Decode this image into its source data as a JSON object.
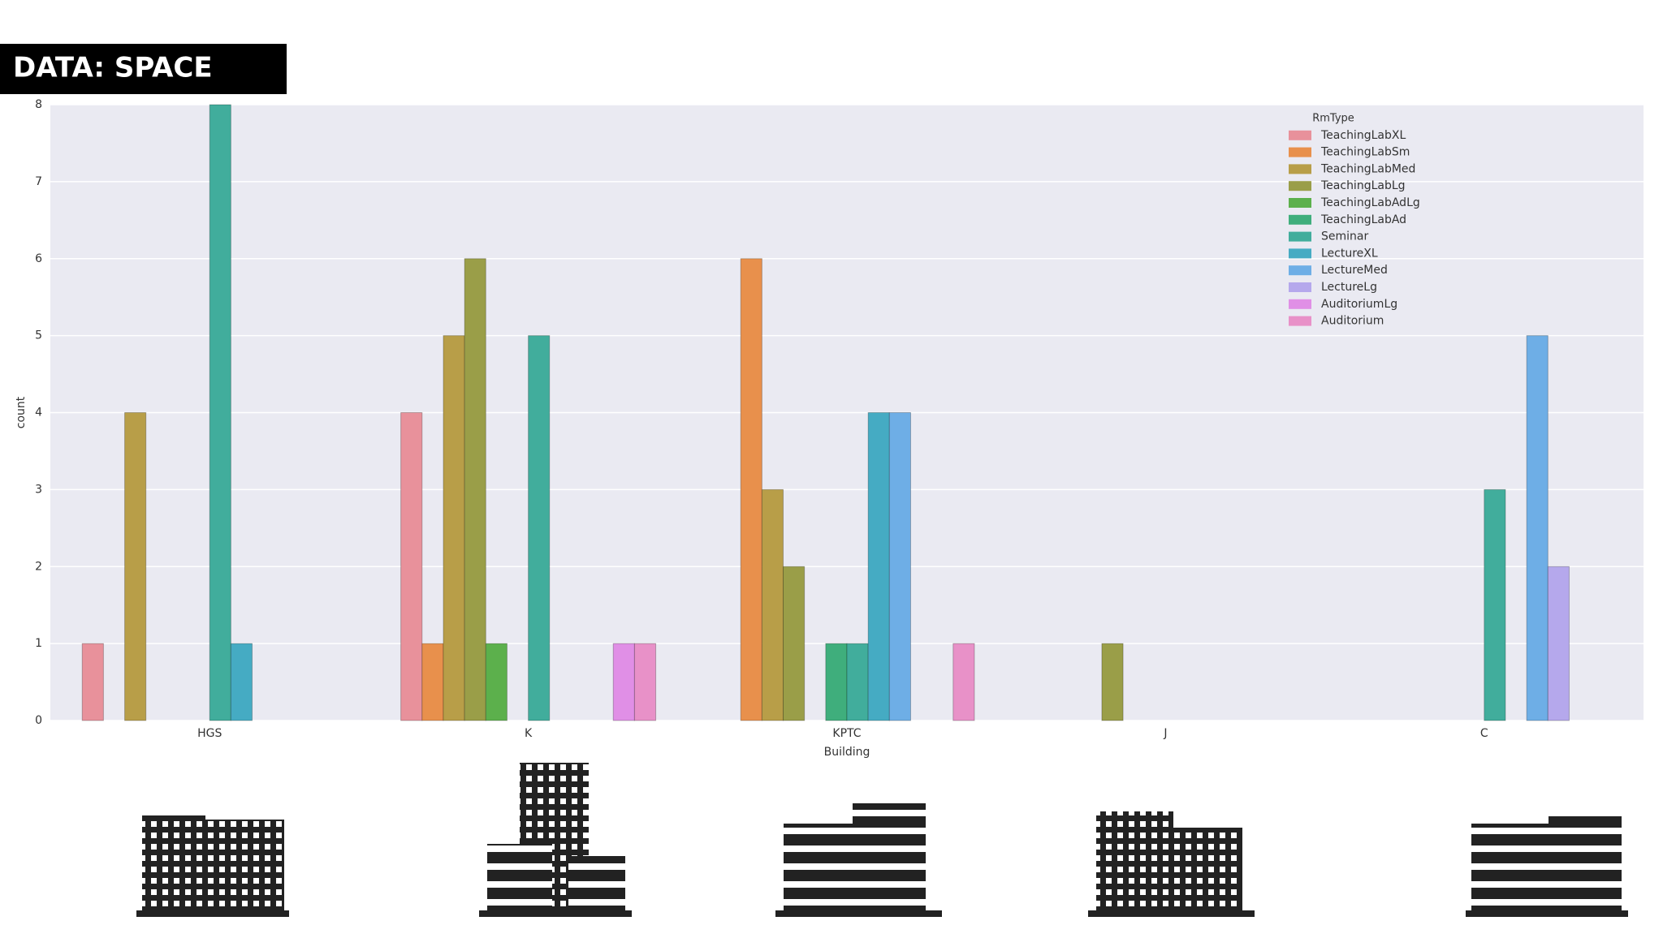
{
  "title": "DATA: SPACE",
  "chart_data": {
    "type": "bar",
    "xlabel": "Building",
    "ylabel": "count",
    "legend_title": "RmType",
    "legend": "upper right",
    "grid": true,
    "categories": [
      "HGS",
      "K",
      "KPTC",
      "J",
      "C"
    ],
    "ylim": [
      0,
      8
    ],
    "yticks": [
      0,
      1,
      2,
      3,
      4,
      5,
      6,
      7,
      8
    ],
    "series": [
      {
        "name": "TeachingLabXL",
        "color": "#e8919b",
        "values": [
          1,
          4,
          0,
          0,
          0
        ]
      },
      {
        "name": "TeachingLabSm",
        "color": "#e8904c",
        "values": [
          0,
          1,
          6,
          0,
          0
        ]
      },
      {
        "name": "TeachingLabMed",
        "color": "#b89e48",
        "values": [
          4,
          5,
          3,
          0,
          0
        ]
      },
      {
        "name": "TeachingLabLg",
        "color": "#9a9e48",
        "values": [
          0,
          6,
          2,
          1,
          0
        ]
      },
      {
        "name": "TeachingLabAdLg",
        "color": "#5cb04c",
        "values": [
          0,
          1,
          0,
          0,
          0
        ]
      },
      {
        "name": "TeachingLabAd",
        "color": "#3fae7c",
        "values": [
          0,
          0,
          1,
          0,
          0
        ]
      },
      {
        "name": "Seminar",
        "color": "#41ad9c",
        "values": [
          8,
          5,
          1,
          0,
          3
        ]
      },
      {
        "name": "LectureXL",
        "color": "#45abc3",
        "values": [
          1,
          0,
          4,
          0,
          0
        ]
      },
      {
        "name": "LectureMed",
        "color": "#6eaee6",
        "values": [
          0,
          0,
          4,
          0,
          5
        ]
      },
      {
        "name": "LectureLg",
        "color": "#b5a8ec",
        "values": [
          0,
          0,
          0,
          0,
          2
        ]
      },
      {
        "name": "AuditoriumLg",
        "color": "#e08fe6",
        "values": [
          0,
          1,
          0,
          0,
          0
        ]
      },
      {
        "name": "Auditorium",
        "color": "#e891c8",
        "values": [
          0,
          1,
          1,
          0,
          0
        ]
      }
    ]
  }
}
